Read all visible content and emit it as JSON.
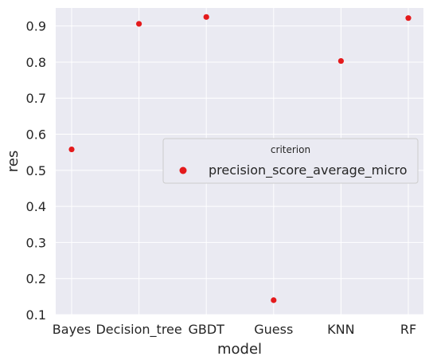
{
  "chart_data": {
    "type": "scatter",
    "categories": [
      "Bayes",
      "Decision_tree",
      "GBDT",
      "Guess",
      "KNN",
      "RF"
    ],
    "series": [
      {
        "name": "precision_score_average_micro",
        "values": [
          0.558,
          0.906,
          0.925,
          0.14,
          0.803,
          0.922
        ],
        "color": "#e41a1c"
      }
    ],
    "xlabel": "model",
    "ylabel": "res",
    "ylim": [
      0.1,
      0.95
    ],
    "yticks": [
      "0.1",
      "0.2",
      "0.3",
      "0.4",
      "0.5",
      "0.6",
      "0.7",
      "0.8",
      "0.9"
    ],
    "grid": true,
    "legend": {
      "title": "criterion",
      "placement": "center-right"
    },
    "colors": {
      "plot_background": "#eaeaf2",
      "grid": "#ffffff",
      "text": "#262626",
      "legend_background": "#eaeaf2",
      "legend_border": "#cccccc"
    }
  }
}
